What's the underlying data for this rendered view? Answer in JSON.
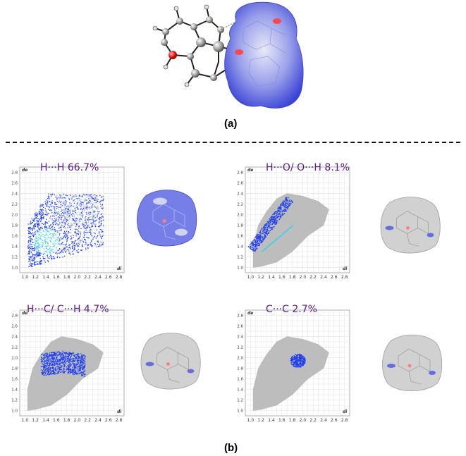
{
  "panel_a": {
    "caption": "(a)"
  },
  "panel_b": {
    "caption": "(b)",
    "plots": [
      {
        "label": "H···H 66.7%",
        "x_axis": "di",
        "y_axis": "de",
        "highlight": "full"
      },
      {
        "label": "H···O/ O···H 8.1%",
        "x_axis": "di",
        "y_axis": "de",
        "highlight": "spikes"
      },
      {
        "label": "H···C/ C···H 4.7%",
        "x_axis": "di",
        "y_axis": "de",
        "highlight": "wings"
      },
      {
        "label": "C···C 2.7%",
        "x_axis": "di",
        "y_axis": "de",
        "highlight": "cluster"
      }
    ],
    "x_ticks": [
      "1.0",
      "1.2",
      "1.4",
      "1.6",
      "1.8",
      "2.0",
      "2.2",
      "2.4",
      "2.6",
      "2.8"
    ],
    "y_ticks": [
      "2.8",
      "2.6",
      "2.4",
      "2.2",
      "2.0",
      "1.8",
      "1.6",
      "1.4",
      "1.2",
      "1.0"
    ]
  },
  "colors": {
    "fingerprint_grey": "#bdbdbd",
    "fingerprint_blue": "#1f3ff0",
    "fingerprint_cyan": "#3fd0e8",
    "surface_blue": "#6f78e6",
    "surface_grey": "#cfcfcf",
    "label_purple": "#5a1c86"
  }
}
